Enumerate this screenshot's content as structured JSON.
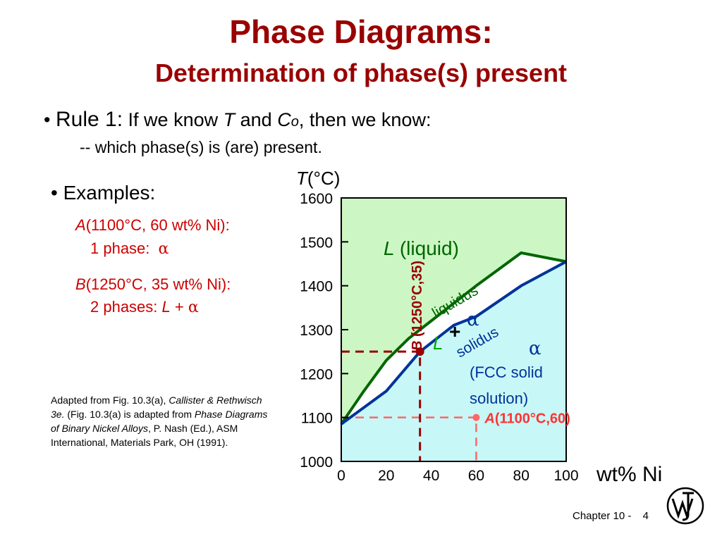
{
  "slide": {
    "title": "Phase Diagrams:",
    "subtitle": "Determination of phase(s) present"
  },
  "rule": {
    "bullet": "•",
    "label": "Rule 1:",
    "text_a": "If we know",
    "var_T": "T",
    "text_and": "and",
    "var_C": "C",
    "var_C_sub": "o",
    "text_b": ", then we know:",
    "sub": "-- which phase(s) is (are) present."
  },
  "examples": {
    "bullet": "•",
    "label": "Examples:",
    "a": {
      "letter": "A",
      "coords": "(1100°C, 60 wt% Ni):",
      "phases_label": "1 phase:",
      "phases_value": "α"
    },
    "b": {
      "letter": "B",
      "coords": "(1250°C, 35 wt% Ni):",
      "phases_label": "2 phases:",
      "phases_L": "L",
      "phases_plus": "+",
      "phases_alpha": "α"
    }
  },
  "caption": {
    "p1": "Adapted from Fig. 10.3(a), ",
    "p2": "Callister & Rethwisch 3e.",
    "p3": " (Fig. 10.3(a) is adapted from ",
    "p4": "Phase Diagrams of Binary Nickel Alloys",
    "p5": ", P. Nash (Ed.), ASM International, Materials Park, OH (1991)."
  },
  "footer": {
    "chapter": "Chapter 10 -",
    "page": "4"
  },
  "colors": {
    "title": "#990000",
    "example_text": "#cc0000",
    "liquid_region": "#ccf7c4",
    "alpha_region": "#c8f7f7",
    "two_phase_region": "#ffffff",
    "liquidus": "#006600",
    "solidus": "#003399",
    "point_B": "#990000",
    "point_A": "#ff6666"
  },
  "chart_data": {
    "type": "phase-diagram",
    "ylabel_var": "T",
    "ylabel_unit": "(°C)",
    "xlabel": "wt% Ni",
    "xlim": [
      0,
      100
    ],
    "ylim": [
      1000,
      1600
    ],
    "xticks": [
      0,
      20,
      40,
      60,
      80,
      100
    ],
    "yticks": [
      1000,
      1100,
      1200,
      1300,
      1400,
      1500,
      1600
    ],
    "liquidus": [
      [
        0,
        1085
      ],
      [
        10,
        1160
      ],
      [
        20,
        1230
      ],
      [
        30,
        1280
      ],
      [
        35,
        1300
      ],
      [
        50,
        1360
      ],
      [
        60,
        1400
      ],
      [
        80,
        1475
      ],
      [
        100,
        1455
      ]
    ],
    "solidus": [
      [
        0,
        1085
      ],
      [
        20,
        1160
      ],
      [
        35,
        1250
      ],
      [
        50,
        1310
      ],
      [
        60,
        1330
      ],
      [
        80,
        1400
      ],
      [
        100,
        1455
      ]
    ],
    "regions": {
      "liquid": {
        "var": "L",
        "text": "(liquid)"
      },
      "alpha": {
        "symbol": "α",
        "line1": "(FCC solid",
        "line2": "solution)"
      },
      "two_phase": {
        "L": "L",
        "plus": "+",
        "alpha": "α"
      }
    },
    "curve_labels": {
      "liquidus": "liquidus",
      "solidus": "solidus"
    },
    "points": [
      {
        "letter": "A",
        "label": "(1100°C,60)",
        "x": 60,
        "y": 1100
      },
      {
        "letter": "B",
        "label": "(1250°C,35)",
        "x": 35,
        "y": 1250
      }
    ]
  }
}
